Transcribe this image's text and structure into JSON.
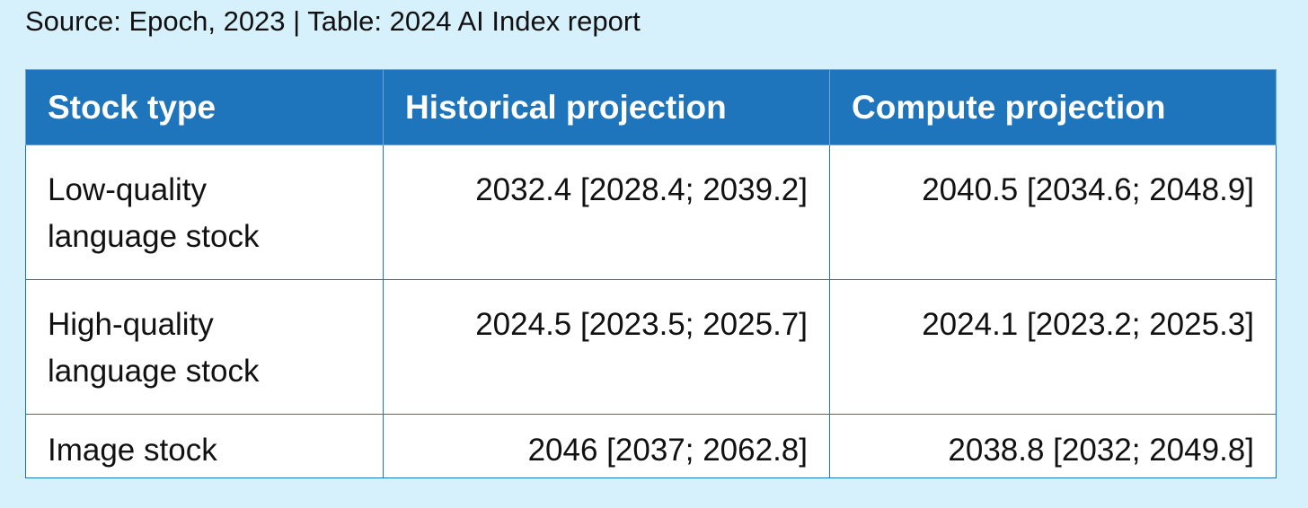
{
  "caption": "Source: Epoch, 2023 | Table: 2024 AI Index report",
  "table": {
    "headers": [
      "Stock type",
      "Historical projection",
      "Compute projection"
    ],
    "rows": [
      {
        "stock_type_line1": "Low-quality",
        "stock_type_line2": "language stock",
        "historical": "2032.4 [2028.4; 2039.2]",
        "compute": "2040.5 [2034.6; 2048.9]"
      },
      {
        "stock_type_line1": "High-quality",
        "stock_type_line2": "language stock",
        "historical": "2024.5 [2023.5; 2025.7]",
        "compute": "2024.1 [2023.2; 2025.3]"
      },
      {
        "stock_type_line1": "Image stock",
        "stock_type_line2": "",
        "historical": "2046 [2037; 2062.8]",
        "compute": "2038.8 [2032; 2049.8]"
      }
    ]
  },
  "colors": {
    "background": "#d6f1fc",
    "header_fill": "#1f75bb",
    "header_text": "#ffffff",
    "cell_border": "#1f75bb"
  }
}
